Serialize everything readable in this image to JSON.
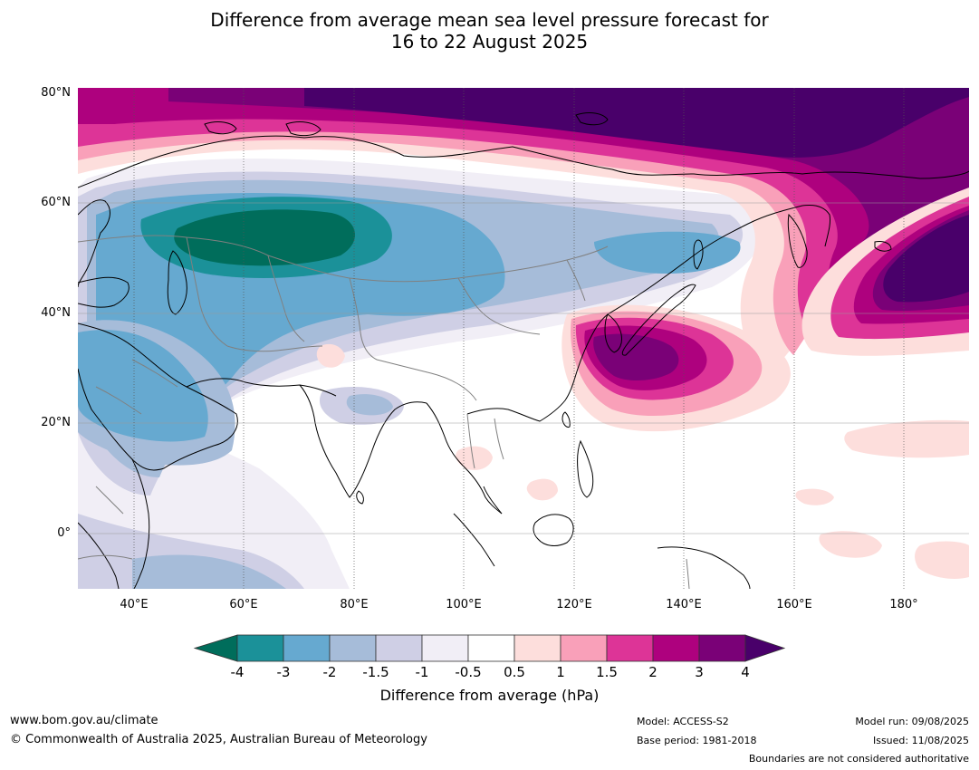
{
  "title": {
    "line1": "Difference from average mean sea level pressure forecast for",
    "line2": "16 to 22 August 2025"
  },
  "map": {
    "lat_labels": [
      "80°N",
      "60°N",
      "40°N",
      "20°N",
      "0°"
    ],
    "lon_labels": [
      "40°E",
      "60°E",
      "80°E",
      "100°E",
      "120°E",
      "140°E",
      "160°E",
      "180°"
    ],
    "colors": {
      "minus_4_below": "#006d5b",
      "minus_4_3": "#1b9199",
      "minus_3_2": "#66a9d0",
      "minus_2_1_5": "#a6bcd9",
      "minus_1_5_1": "#cfcfe5",
      "minus_1_0_5": "#f1eef6",
      "neutral": "#ffffff",
      "plus_0_5_1": "#fddedc",
      "plus_1_1_5": "#f9a0b9",
      "plus_1_5_2": "#dd3497",
      "plus_2_3": "#ae017e",
      "plus_3_4": "#7a0177",
      "plus_4_above": "#49006a"
    }
  },
  "colorbar": {
    "ticks": [
      "-4",
      "-3",
      "-2",
      "-1.5",
      "-1",
      "-0.5",
      "0.5",
      "1",
      "1.5",
      "2",
      "3",
      "4"
    ],
    "title": "Difference from average (hPa)"
  },
  "footer": {
    "website": "www.bom.gov.au/climate",
    "copyright": "© Commonwealth of Australia 2025, Australian Bureau of Meteorology",
    "model": "Model: ACCESS-S2",
    "base_period": "Base period: 1981-2018",
    "model_run": "Model run: 09/08/2025",
    "issued": "Issued: 11/08/2025",
    "disclaimer": "Boundaries are not considered authoritative"
  }
}
